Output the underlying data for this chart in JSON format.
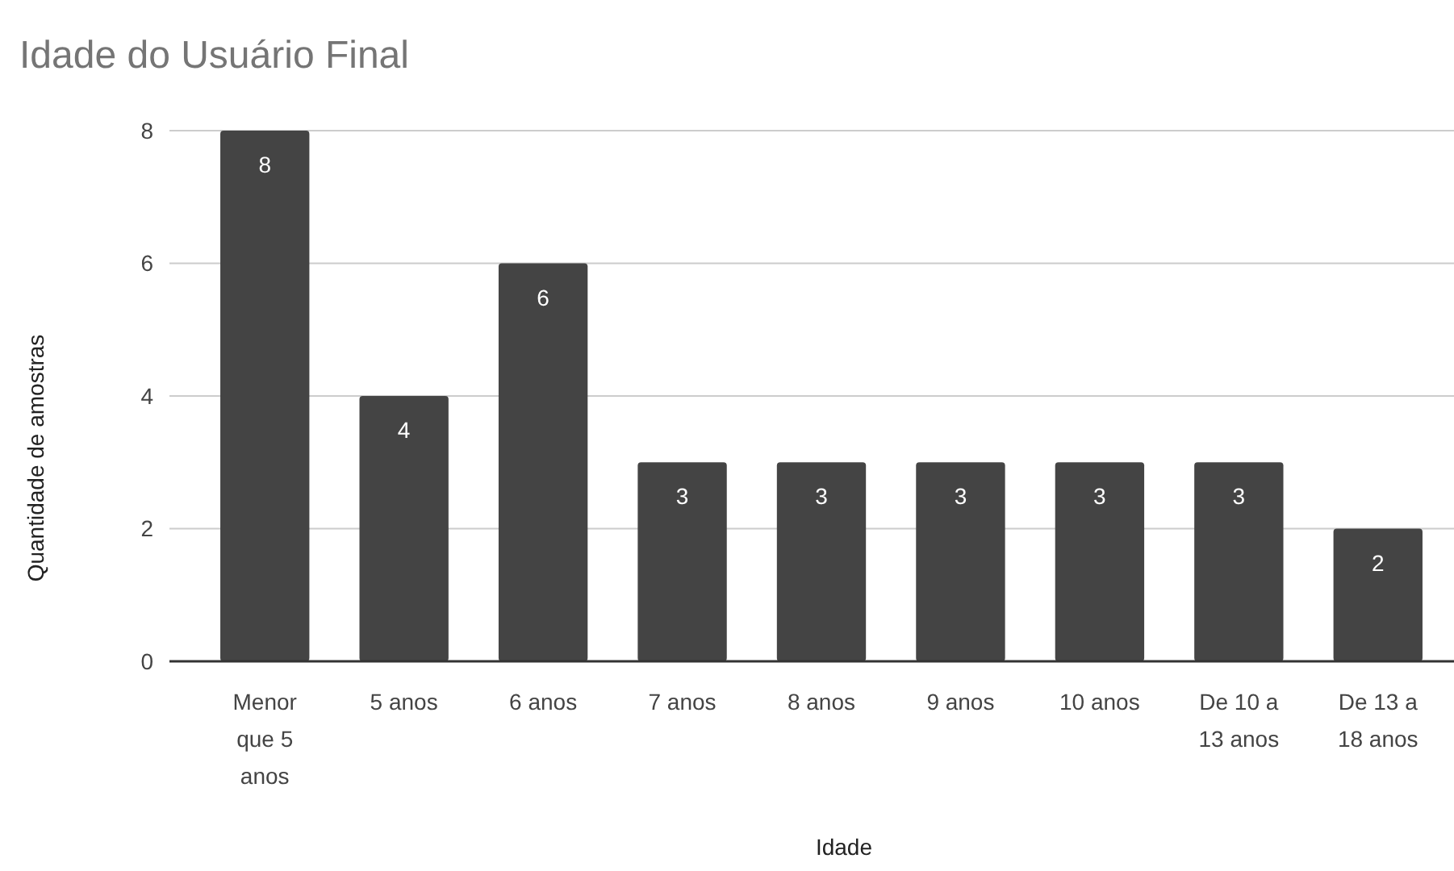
{
  "chart_data": {
    "type": "bar",
    "title": "Idade do Usuário Final",
    "xlabel": "Idade",
    "ylabel": "Quantidade de amostras",
    "categories": [
      "Menor que 5 anos",
      "5 anos",
      "6 anos",
      "7 anos",
      "8 anos",
      "9 anos",
      "10 anos",
      "De 10 a 13 anos",
      "De 13 a 18 anos"
    ],
    "values": [
      8,
      4,
      6,
      3,
      3,
      3,
      3,
      3,
      2
    ],
    "color": "#444444",
    "ylim": [
      0,
      8
    ],
    "yticks": [
      0,
      2,
      4,
      6,
      8
    ],
    "grid": "y",
    "data_labels": true
  }
}
